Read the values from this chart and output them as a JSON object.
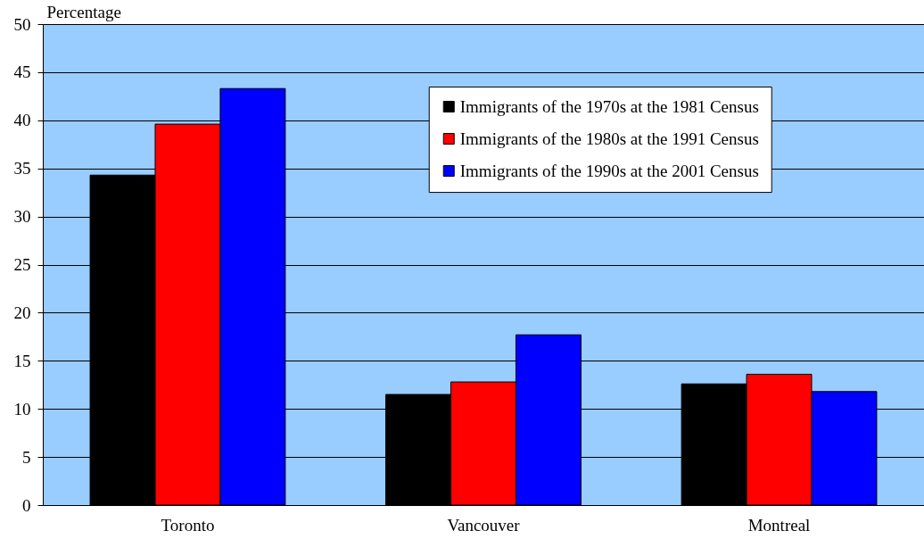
{
  "chart_data": {
    "type": "bar",
    "ylabel": "Percentage",
    "categories": [
      "Toronto",
      "Vancouver",
      "Montreal"
    ],
    "series": [
      {
        "name": "Immigrants of the 1970s at the 1981 Census",
        "color": "#000000",
        "values": [
          34.3,
          11.5,
          12.6
        ]
      },
      {
        "name": "Immigrants of the 1980s at the 1991 Census",
        "color": "#ff0000",
        "values": [
          39.6,
          12.8,
          13.6
        ]
      },
      {
        "name": "Immigrants of the 1990s at the 2001 Census",
        "color": "#0000ff",
        "values": [
          43.3,
          17.7,
          11.8
        ]
      }
    ],
    "ylim": [
      0,
      50
    ],
    "yticks": [
      0,
      5,
      10,
      15,
      20,
      25,
      30,
      35,
      40,
      45,
      50
    ],
    "grid": "y",
    "legend": "top right"
  }
}
